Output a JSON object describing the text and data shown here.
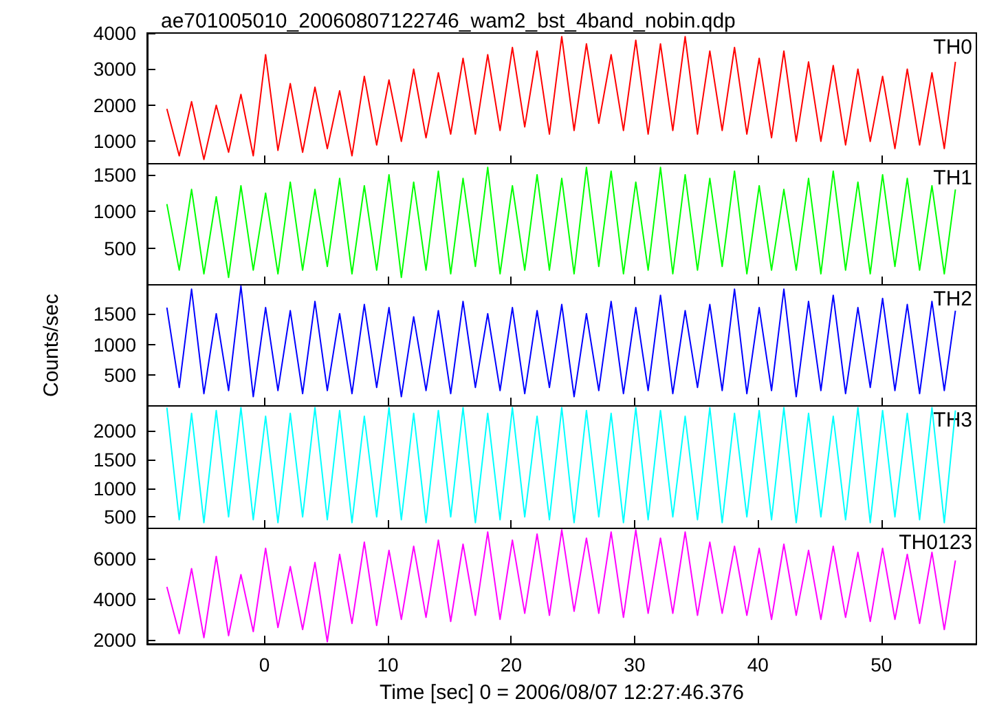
{
  "chart_data": [
    {
      "type": "line",
      "title": "ae701005010_20060807122746_wam2_bst_4band_nobin.qdp",
      "tick_labels": "y",
      "xlim": [
        -9.5,
        57.7
      ],
      "xticks": [
        0,
        10,
        20,
        30,
        40,
        50
      ],
      "ylim": [
        380,
        4000
      ],
      "yticks": [
        1000,
        2000,
        3000,
        4000
      ],
      "x": [
        -7.9,
        -6.9,
        -5.9,
        -4.9,
        -3.9,
        -2.9,
        -1.9,
        -0.9,
        0.1,
        1.1,
        2.1,
        3.1,
        4.1,
        5.1,
        6.1,
        7.1,
        8.1,
        9.1,
        10.1,
        11.1,
        12.1,
        13.1,
        14.1,
        15.1,
        16.1,
        17.1,
        18.1,
        19.1,
        20.1,
        21.1,
        22.1,
        23.1,
        24.1,
        25.1,
        26.1,
        27.1,
        28.1,
        29.1,
        30.1,
        31.1,
        32.1,
        33.1,
        34.1,
        35.1,
        36.1,
        37.1,
        38.1,
        39.1,
        40.1,
        41.1,
        42.1,
        43.1,
        44.1,
        45.1,
        46.1,
        47.1,
        48.1,
        49.1,
        50.1,
        51.1,
        52.1,
        53.1,
        54.1,
        55.1,
        56.0
      ],
      "series": [
        {
          "name": "TH0",
          "color": "#ff0000",
          "values": [
            1900,
            600,
            2100,
            500,
            2000,
            700,
            2300,
            600,
            3400,
            750,
            2600,
            700,
            2500,
            800,
            2400,
            600,
            2800,
            900,
            2700,
            1000,
            3000,
            1100,
            2900,
            1200,
            3300,
            1200,
            3400,
            1300,
            3600,
            1400,
            3500,
            1200,
            3900,
            1300,
            3700,
            1500,
            3400,
            1300,
            3800,
            1200,
            3700,
            1300,
            3900,
            1200,
            3500,
            1300,
            3600,
            1200,
            3300,
            1100,
            3500,
            1000,
            3200,
            1000,
            3100,
            900,
            3000,
            1000,
            2800,
            800,
            3000,
            900,
            2900,
            800,
            3200
          ]
        }
      ]
    },
    {
      "type": "line",
      "tick_labels": "y",
      "xlim": [
        -9.5,
        57.7
      ],
      "xticks": [
        0,
        10,
        20,
        30,
        40,
        50
      ],
      "ylim": [
        0,
        1650
      ],
      "yticks": [
        500,
        1000,
        1500
      ],
      "x": [
        -7.9,
        -6.9,
        -5.9,
        -4.9,
        -3.9,
        -2.9,
        -1.9,
        -0.9,
        0.1,
        1.1,
        2.1,
        3.1,
        4.1,
        5.1,
        6.1,
        7.1,
        8.1,
        9.1,
        10.1,
        11.1,
        12.1,
        13.1,
        14.1,
        15.1,
        16.1,
        17.1,
        18.1,
        19.1,
        20.1,
        21.1,
        22.1,
        23.1,
        24.1,
        25.1,
        26.1,
        27.1,
        28.1,
        29.1,
        30.1,
        31.1,
        32.1,
        33.1,
        34.1,
        35.1,
        36.1,
        37.1,
        38.1,
        39.1,
        40.1,
        41.1,
        42.1,
        43.1,
        44.1,
        45.1,
        46.1,
        47.1,
        48.1,
        49.1,
        50.1,
        51.1,
        52.1,
        53.1,
        54.1,
        55.1,
        56.0
      ],
      "series": [
        {
          "name": "TH1",
          "color": "#00ff00",
          "values": [
            1100,
            200,
            1300,
            150,
            1200,
            100,
            1350,
            200,
            1250,
            150,
            1400,
            200,
            1300,
            250,
            1450,
            150,
            1350,
            200,
            1500,
            100,
            1400,
            200,
            1550,
            150,
            1450,
            250,
            1600,
            150,
            1350,
            200,
            1500,
            200,
            1450,
            150,
            1600,
            250,
            1550,
            150,
            1400,
            200,
            1600,
            150,
            1500,
            200,
            1450,
            250,
            1550,
            150,
            1350,
            200,
            1300,
            200,
            1450,
            150,
            1550,
            200,
            1400,
            150,
            1500,
            250,
            1450,
            200,
            1350,
            150,
            1300
          ]
        }
      ]
    },
    {
      "type": "line",
      "ylabel": "Counts/sec",
      "tick_labels": "y",
      "xlim": [
        -9.5,
        57.7
      ],
      "xticks": [
        0,
        10,
        20,
        30,
        40,
        50
      ],
      "ylim": [
        0,
        1970
      ],
      "yticks": [
        500,
        1000,
        1500
      ],
      "x": [
        -7.9,
        -6.9,
        -5.9,
        -4.9,
        -3.9,
        -2.9,
        -1.9,
        -0.9,
        0.1,
        1.1,
        2.1,
        3.1,
        4.1,
        5.1,
        6.1,
        7.1,
        8.1,
        9.1,
        10.1,
        11.1,
        12.1,
        13.1,
        14.1,
        15.1,
        16.1,
        17.1,
        18.1,
        19.1,
        20.1,
        21.1,
        22.1,
        23.1,
        24.1,
        25.1,
        26.1,
        27.1,
        28.1,
        29.1,
        30.1,
        31.1,
        32.1,
        33.1,
        34.1,
        35.1,
        36.1,
        37.1,
        38.1,
        39.1,
        40.1,
        41.1,
        42.1,
        43.1,
        44.1,
        45.1,
        46.1,
        47.1,
        48.1,
        49.1,
        50.1,
        51.1,
        52.1,
        53.1,
        54.1,
        55.1,
        56.0
      ],
      "series": [
        {
          "name": "TH2",
          "color": "#0000ff",
          "values": [
            1600,
            300,
            1900,
            200,
            1500,
            250,
            1950,
            150,
            1600,
            250,
            1550,
            200,
            1700,
            250,
            1500,
            200,
            1650,
            300,
            1600,
            150,
            1450,
            250,
            1550,
            200,
            1700,
            300,
            1500,
            250,
            1600,
            200,
            1550,
            300,
            1650,
            150,
            1500,
            250,
            1700,
            200,
            1600,
            250,
            1800,
            200,
            1550,
            300,
            1650,
            250,
            1900,
            200,
            1600,
            250,
            1900,
            150,
            1700,
            250,
            1800,
            200,
            1600,
            300,
            1750,
            250,
            1650,
            200,
            1700,
            250,
            1550
          ]
        }
      ]
    },
    {
      "type": "line",
      "tick_labels": "y",
      "xlim": [
        -9.5,
        57.7
      ],
      "xticks": [
        0,
        10,
        20,
        30,
        40,
        50
      ],
      "ylim": [
        300,
        2430
      ],
      "yticks": [
        500,
        1000,
        1500,
        2000
      ],
      "x": [
        -7.9,
        -6.9,
        -5.9,
        -4.9,
        -3.9,
        -2.9,
        -1.9,
        -0.9,
        0.1,
        1.1,
        2.1,
        3.1,
        4.1,
        5.1,
        6.1,
        7.1,
        8.1,
        9.1,
        10.1,
        11.1,
        12.1,
        13.1,
        14.1,
        15.1,
        16.1,
        17.1,
        18.1,
        19.1,
        20.1,
        21.1,
        22.1,
        23.1,
        24.1,
        25.1,
        26.1,
        27.1,
        28.1,
        29.1,
        30.1,
        31.1,
        32.1,
        33.1,
        34.1,
        35.1,
        36.1,
        37.1,
        38.1,
        39.1,
        40.1,
        41.1,
        42.1,
        43.1,
        44.1,
        45.1,
        46.1,
        47.1,
        48.1,
        49.1,
        50.1,
        51.1,
        52.1,
        53.1,
        54.1,
        55.1,
        56.0
      ],
      "series": [
        {
          "name": "TH3",
          "color": "#00ffff",
          "values": [
            2400,
            450,
            2300,
            400,
            2350,
            500,
            2400,
            450,
            2250,
            400,
            2300,
            500,
            2400,
            450,
            2350,
            400,
            2250,
            500,
            2400,
            450,
            2300,
            400,
            2350,
            500,
            2400,
            400,
            2300,
            450,
            2400,
            500,
            2250,
            450,
            2400,
            400,
            2350,
            500,
            2300,
            400,
            2400,
            450,
            2350,
            500,
            2250,
            450,
            2400,
            400,
            2300,
            500,
            2350,
            450,
            2400,
            400,
            2300,
            500,
            2250,
            450,
            2400,
            400,
            2350,
            500,
            2300,
            450,
            2400,
            400,
            2350
          ]
        }
      ]
    },
    {
      "type": "line",
      "xlabel": "Time [sec] 0 = 2006/08/07 12:27:46.376",
      "xlim": [
        -9.5,
        57.7
      ],
      "xticks": [
        0,
        10,
        20,
        30,
        40,
        50
      ],
      "ylim": [
        1790,
        7480
      ],
      "yticks": [
        2000,
        4000,
        6000
      ],
      "x": [
        -7.9,
        -6.9,
        -5.9,
        -4.9,
        -3.9,
        -2.9,
        -1.9,
        -0.9,
        0.1,
        1.1,
        2.1,
        3.1,
        4.1,
        5.1,
        6.1,
        7.1,
        8.1,
        9.1,
        10.1,
        11.1,
        12.1,
        13.1,
        14.1,
        15.1,
        16.1,
        17.1,
        18.1,
        19.1,
        20.1,
        21.1,
        22.1,
        23.1,
        24.1,
        25.1,
        26.1,
        27.1,
        28.1,
        29.1,
        30.1,
        31.1,
        32.1,
        33.1,
        34.1,
        35.1,
        36.1,
        37.1,
        38.1,
        39.1,
        40.1,
        41.1,
        42.1,
        43.1,
        44.1,
        45.1,
        46.1,
        47.1,
        48.1,
        49.1,
        50.1,
        51.1,
        52.1,
        53.1,
        54.1,
        55.1,
        56.0
      ],
      "series": [
        {
          "name": "TH0123",
          "color": "#ff00ff",
          "values": [
            4600,
            2300,
            5500,
            2100,
            6100,
            2200,
            5200,
            2400,
            6500,
            2600,
            5600,
            2500,
            5800,
            1900,
            6200,
            2800,
            6800,
            2700,
            6400,
            3000,
            6600,
            3100,
            6900,
            2900,
            6700,
            3200,
            7300,
            3000,
            6900,
            3300,
            7200,
            3200,
            7400,
            3400,
            7000,
            3300,
            7300,
            3100,
            7400,
            3300,
            7000,
            3300,
            7300,
            3200,
            6800,
            3300,
            6600,
            3200,
            6500,
            3000,
            6700,
            3200,
            6400,
            3000,
            6600,
            3100,
            6300,
            2900,
            6500,
            3000,
            6200,
            2800,
            6300,
            2500,
            5900
          ]
        }
      ]
    }
  ]
}
